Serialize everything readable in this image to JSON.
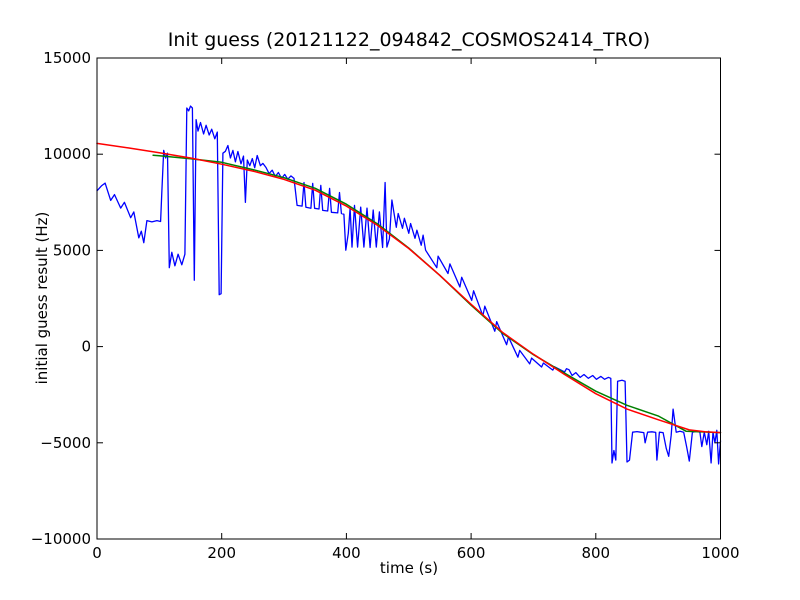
{
  "figure": {
    "background": "#ffffff",
    "axis_color": "#000000"
  },
  "chart_data": {
    "type": "line",
    "title": "Init guess (20121122_094842_COSMOS2414_TRO)",
    "xlabel": "time (s)",
    "ylabel": "initial guess result (Hz)",
    "xlim": [
      0,
      1000
    ],
    "ylim": [
      -10000,
      15000
    ],
    "x_ticks": [
      0,
      200,
      400,
      600,
      800,
      1000
    ],
    "y_ticks": [
      -10000,
      -5000,
      0,
      5000,
      10000,
      15000
    ],
    "x_tick_labels": [
      "0",
      "200",
      "400",
      "600",
      "800",
      "1000"
    ],
    "y_tick_labels": [
      "−10000",
      "−5000",
      "0",
      "5000",
      "10000",
      "15000"
    ],
    "grid": false,
    "legend": null,
    "series": [
      {
        "name": "blue-noisy-data",
        "color": "#0000ff",
        "width": 1.3,
        "points": [
          [
            0,
            8100
          ],
          [
            7,
            8350
          ],
          [
            13,
            8500
          ],
          [
            22,
            7600
          ],
          [
            28,
            7900
          ],
          [
            38,
            7200
          ],
          [
            44,
            7500
          ],
          [
            54,
            6700
          ],
          [
            59,
            7000
          ],
          [
            67,
            5650
          ],
          [
            71,
            6000
          ],
          [
            75,
            5400
          ],
          [
            80,
            6550
          ],
          [
            88,
            6480
          ],
          [
            96,
            6550
          ],
          [
            102,
            6500
          ],
          [
            104,
            8000
          ],
          [
            107,
            10200
          ],
          [
            110,
            9800
          ],
          [
            113,
            10050
          ],
          [
            116,
            4100
          ],
          [
            120,
            4900
          ],
          [
            125,
            4200
          ],
          [
            130,
            4800
          ],
          [
            136,
            4250
          ],
          [
            141,
            4800
          ],
          [
            144,
            12400
          ],
          [
            147,
            12250
          ],
          [
            150,
            12500
          ],
          [
            153,
            12400
          ],
          [
            156,
            3450
          ],
          [
            159,
            11800
          ],
          [
            162,
            11200
          ],
          [
            166,
            11650
          ],
          [
            171,
            11050
          ],
          [
            175,
            11500
          ],
          [
            180,
            11000
          ],
          [
            184,
            11300
          ],
          [
            189,
            10800
          ],
          [
            193,
            11150
          ],
          [
            196,
            2700
          ],
          [
            199,
            2750
          ],
          [
            202,
            10050
          ],
          [
            206,
            10150
          ],
          [
            210,
            10450
          ],
          [
            214,
            9800
          ],
          [
            218,
            10200
          ],
          [
            222,
            9600
          ],
          [
            226,
            10140
          ],
          [
            231,
            9500
          ],
          [
            235,
            9900
          ],
          [
            238,
            7500
          ],
          [
            241,
            9700
          ],
          [
            245,
            9400
          ],
          [
            249,
            9770
          ],
          [
            253,
            9300
          ],
          [
            257,
            9930
          ],
          [
            262,
            9400
          ],
          [
            266,
            9520
          ],
          [
            271,
            9310
          ],
          [
            276,
            8990
          ],
          [
            281,
            9170
          ],
          [
            286,
            8840
          ],
          [
            291,
            9050
          ],
          [
            296,
            8740
          ],
          [
            301,
            8950
          ],
          [
            306,
            8700
          ],
          [
            311,
            8870
          ],
          [
            316,
            8740
          ],
          [
            321,
            7340
          ],
          [
            329,
            7300
          ],
          [
            332,
            8530
          ],
          [
            335,
            7240
          ],
          [
            343,
            7190
          ],
          [
            346,
            8480
          ],
          [
            349,
            7190
          ],
          [
            356,
            7150
          ],
          [
            359,
            8380
          ],
          [
            362,
            7080
          ],
          [
            370,
            7050
          ],
          [
            373,
            8220
          ],
          [
            376,
            6980
          ],
          [
            386,
            6950
          ],
          [
            389,
            8010
          ],
          [
            392,
            6920
          ],
          [
            396,
            6880
          ],
          [
            399,
            5010
          ],
          [
            403,
            5890
          ],
          [
            406,
            7200
          ],
          [
            409,
            5170
          ],
          [
            413,
            7340
          ],
          [
            418,
            5170
          ],
          [
            423,
            7250
          ],
          [
            428,
            5170
          ],
          [
            433,
            7200
          ],
          [
            438,
            5150
          ],
          [
            443,
            7100
          ],
          [
            448,
            5170
          ],
          [
            453,
            7000
          ],
          [
            458,
            5150
          ],
          [
            462,
            8530
          ],
          [
            465,
            5170
          ],
          [
            469,
            5600
          ],
          [
            473,
            7620
          ],
          [
            480,
            6200
          ],
          [
            483,
            6920
          ],
          [
            490,
            6150
          ],
          [
            493,
            6670
          ],
          [
            500,
            5890
          ],
          [
            503,
            6400
          ],
          [
            510,
            5630
          ],
          [
            513,
            6050
          ],
          [
            520,
            5270
          ],
          [
            523,
            5790
          ],
          [
            527,
            5010
          ],
          [
            545,
            4100
          ],
          [
            547,
            4700
          ],
          [
            563,
            3800
          ],
          [
            566,
            4300
          ],
          [
            582,
            3100
          ],
          [
            585,
            3600
          ],
          [
            601,
            2400
          ],
          [
            604,
            2900
          ],
          [
            619,
            1600
          ],
          [
            622,
            2100
          ],
          [
            638,
            800
          ],
          [
            641,
            1300
          ],
          [
            657,
            100
          ],
          [
            660,
            500
          ],
          [
            675,
            -550
          ],
          [
            678,
            -200
          ],
          [
            694,
            -900
          ],
          [
            697,
            -600
          ],
          [
            713,
            -1060
          ],
          [
            716,
            -850
          ],
          [
            731,
            -1220
          ],
          [
            734,
            -1050
          ],
          [
            750,
            -1320
          ],
          [
            753,
            -1150
          ],
          [
            757,
            -1200
          ],
          [
            762,
            -1500
          ],
          [
            768,
            -1350
          ],
          [
            775,
            -1600
          ],
          [
            781,
            -1450
          ],
          [
            788,
            -1650
          ],
          [
            795,
            -1500
          ],
          [
            801,
            -1700
          ],
          [
            808,
            -1550
          ],
          [
            814,
            -1700
          ],
          [
            820,
            -1600
          ],
          [
            824,
            -1650
          ],
          [
            826,
            -6050
          ],
          [
            829,
            -5400
          ],
          [
            832,
            -5900
          ],
          [
            835,
            -1800
          ],
          [
            842,
            -1750
          ],
          [
            847,
            -1800
          ],
          [
            850,
            -6000
          ],
          [
            854,
            -5900
          ],
          [
            859,
            -4450
          ],
          [
            866,
            -4420
          ],
          [
            872,
            -4450
          ],
          [
            877,
            -4470
          ],
          [
            879,
            -5000
          ],
          [
            883,
            -4450
          ],
          [
            890,
            -4430
          ],
          [
            896,
            -4460
          ],
          [
            898,
            -5900
          ],
          [
            902,
            -4450
          ],
          [
            908,
            -4470
          ],
          [
            913,
            -5300
          ],
          [
            917,
            -5700
          ],
          [
            921,
            -4600
          ],
          [
            924,
            -3250
          ],
          [
            929,
            -4450
          ],
          [
            935,
            -4400
          ],
          [
            941,
            -4450
          ],
          [
            946,
            -5250
          ],
          [
            950,
            -5950
          ],
          [
            955,
            -4450
          ],
          [
            962,
            -4400
          ],
          [
            967,
            -4450
          ],
          [
            970,
            -5200
          ],
          [
            974,
            -4450
          ],
          [
            978,
            -5100
          ],
          [
            981,
            -4400
          ],
          [
            985,
            -6050
          ],
          [
            988,
            -4450
          ],
          [
            991,
            -5000
          ],
          [
            994,
            -4350
          ],
          [
            997,
            -6100
          ],
          [
            1000,
            -4900
          ]
        ]
      },
      {
        "name": "green-smoothed-fit",
        "color": "#008000",
        "width": 1.5,
        "points": [
          [
            90,
            9950
          ],
          [
            100,
            9920
          ],
          [
            150,
            9760
          ],
          [
            200,
            9580
          ],
          [
            250,
            9200
          ],
          [
            300,
            8780
          ],
          [
            350,
            8230
          ],
          [
            400,
            7400
          ],
          [
            450,
            6370
          ],
          [
            500,
            5120
          ],
          [
            550,
            3700
          ],
          [
            600,
            2150
          ],
          [
            650,
            700
          ],
          [
            700,
            -420
          ],
          [
            750,
            -1380
          ],
          [
            800,
            -2320
          ],
          [
            850,
            -3050
          ],
          [
            900,
            -3600
          ],
          [
            945,
            -4400
          ],
          [
            1000,
            -4470
          ]
        ]
      },
      {
        "name": "red-model-curve",
        "color": "#ff0000",
        "width": 1.5,
        "points": [
          [
            0,
            10560
          ],
          [
            50,
            10330
          ],
          [
            100,
            10080
          ],
          [
            150,
            9800
          ],
          [
            200,
            9480
          ],
          [
            250,
            9120
          ],
          [
            300,
            8690
          ],
          [
            350,
            8130
          ],
          [
            400,
            7300
          ],
          [
            450,
            6300
          ],
          [
            500,
            5100
          ],
          [
            550,
            3700
          ],
          [
            600,
            2200
          ],
          [
            650,
            750
          ],
          [
            700,
            -400
          ],
          [
            750,
            -1450
          ],
          [
            800,
            -2450
          ],
          [
            850,
            -3250
          ],
          [
            900,
            -3800
          ],
          [
            950,
            -4330
          ],
          [
            975,
            -4430
          ],
          [
            1000,
            -4470
          ]
        ]
      }
    ]
  }
}
